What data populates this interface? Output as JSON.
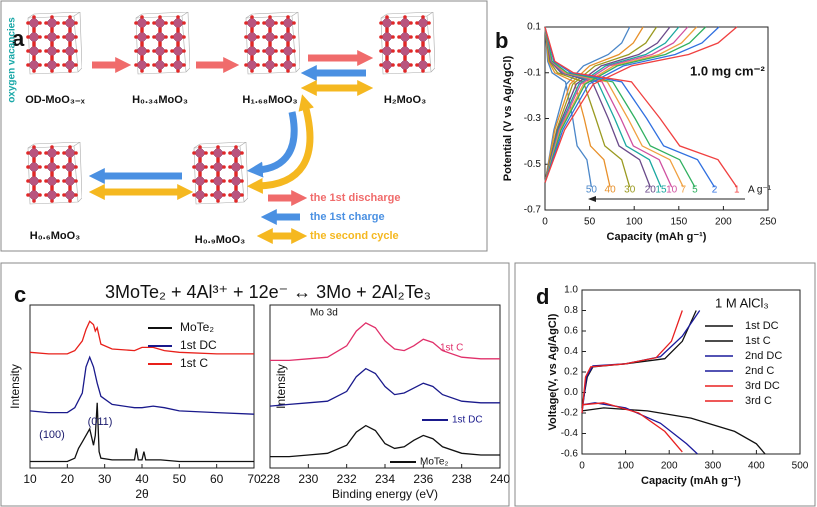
{
  "panel_a": {
    "label": "a",
    "vacancy_label": "oxygen vacancies",
    "nodes": [
      {
        "label": "OD-MoO₃₋ₓ"
      },
      {
        "label": "H₀.₃₄MoO₃"
      },
      {
        "label": "H₁.₆₈MoO₃"
      },
      {
        "label": "H₂MoO₃"
      },
      {
        "label": "H₀.₆MoO₃"
      },
      {
        "label": "H₀.₉MoO₃"
      }
    ],
    "legend": [
      {
        "name": "the 1st discharge",
        "color": "#f06b6b"
      },
      {
        "name": "the 1st charge",
        "color": "#4a90e2"
      },
      {
        "name": "the second cycle",
        "color": "#f5b820"
      }
    ]
  },
  "panel_c": {
    "label": "c",
    "equation": "3MoTe₂ + 4Al³⁺ + 12e⁻ ↔ 3Mo + 2Al₂Te₃"
  },
  "chart_data": [
    {
      "type": "line",
      "panel_label": "b",
      "annotation": "1.0 mg cm⁻²",
      "rate_unit": "A g⁻¹",
      "x_label": "Capacity (mAh g⁻¹)",
      "y_label": "Potential (V vs Ag/AgCl)",
      "xlim": [
        0,
        250
      ],
      "xticks": [
        0,
        50,
        100,
        150,
        200,
        250
      ],
      "ylim": [
        -0.7,
        0.1
      ],
      "yticks": [
        0.1,
        -0.1,
        -0.3,
        -0.5,
        -0.7
      ],
      "series": [
        {
          "name": "50",
          "color": "#4a86c8",
          "x": [
            0,
            3,
            8,
            23,
            31,
            36,
            47,
            52
          ],
          "values": [
            0.1,
            -0.05,
            -0.1,
            -0.14,
            -0.3,
            -0.42,
            -0.48,
            -0.6
          ],
          "charge_x": [
            0,
            10,
            24,
            43,
            71,
            86,
            95
          ],
          "charge_values": [
            -0.58,
            -0.35,
            -0.15,
            -0.07,
            -0.02,
            0.03,
            0.1
          ]
        },
        {
          "name": "40",
          "color": "#e8902a",
          "x": [
            0,
            4,
            11,
            33,
            44,
            51,
            66,
            73
          ],
          "values": [
            0.1,
            -0.05,
            -0.1,
            -0.14,
            -0.3,
            -0.42,
            -0.48,
            -0.6
          ],
          "charge_x": [
            0,
            11,
            28,
            50,
            83,
            99,
            110
          ],
          "charge_values": [
            -0.58,
            -0.35,
            -0.15,
            -0.07,
            -0.02,
            0.03,
            0.1
          ]
        },
        {
          "name": "30",
          "color": "#9a9a20",
          "x": [
            0,
            5,
            14,
            43,
            57,
            67,
            86,
            95
          ],
          "values": [
            0.1,
            -0.05,
            -0.1,
            -0.14,
            -0.3,
            -0.42,
            -0.48,
            -0.6
          ],
          "charge_x": [
            0,
            13,
            31,
            56,
            94,
            113,
            125
          ],
          "charge_values": [
            -0.58,
            -0.35,
            -0.15,
            -0.07,
            -0.02,
            0.03,
            0.1
          ]
        },
        {
          "name": "20",
          "color": "#6a4a8a",
          "x": [
            0,
            6,
            18,
            53,
            71,
            83,
            106,
            118
          ],
          "values": [
            0.1,
            -0.05,
            -0.1,
            -0.14,
            -0.3,
            -0.42,
            -0.48,
            -0.6
          ],
          "charge_x": [
            0,
            14,
            35,
            63,
            105,
            126,
            140
          ],
          "charge_values": [
            -0.58,
            -0.35,
            -0.15,
            -0.07,
            -0.02,
            0.03,
            0.1
          ]
        },
        {
          "name": "15",
          "color": "#1aa8a0",
          "x": [
            0,
            7,
            20,
            59,
            78,
            91,
            117,
            130
          ],
          "values": [
            0.1,
            -0.05,
            -0.1,
            -0.14,
            -0.3,
            -0.42,
            -0.48,
            -0.6
          ],
          "charge_x": [
            0,
            15,
            38,
            68,
            113,
            135,
            150
          ],
          "charge_values": [
            -0.58,
            -0.35,
            -0.15,
            -0.07,
            -0.02,
            0.03,
            0.1
          ]
        },
        {
          "name": "10",
          "color": "#d050a0",
          "x": [
            0,
            7,
            21,
            64,
            85,
            99,
            128,
            142
          ],
          "values": [
            0.1,
            -0.05,
            -0.1,
            -0.14,
            -0.3,
            -0.42,
            -0.48,
            -0.6
          ],
          "charge_x": [
            0,
            16,
            40,
            72,
            120,
            144,
            160
          ],
          "charge_values": [
            -0.58,
            -0.35,
            -0.15,
            -0.07,
            -0.02,
            0.03,
            0.1
          ]
        },
        {
          "name": "7",
          "color": "#f0a040",
          "x": [
            0,
            8,
            23,
            70,
            93,
            109,
            140,
            155
          ],
          "values": [
            0.1,
            -0.05,
            -0.1,
            -0.14,
            -0.3,
            -0.42,
            -0.48,
            -0.6
          ],
          "charge_x": [
            0,
            17,
            43,
            77,
            128,
            153,
            170
          ],
          "charge_values": [
            -0.58,
            -0.35,
            -0.15,
            -0.07,
            -0.02,
            0.03,
            0.1
          ]
        },
        {
          "name": "5",
          "color": "#30b060",
          "x": [
            0,
            8,
            25,
            76,
            101,
            118,
            151,
            168
          ],
          "values": [
            0.1,
            -0.05,
            -0.1,
            -0.14,
            -0.3,
            -0.42,
            -0.48,
            -0.6
          ],
          "charge_x": [
            0,
            18,
            45,
            81,
            135,
            162,
            180
          ],
          "charge_values": [
            -0.58,
            -0.35,
            -0.15,
            -0.07,
            -0.02,
            0.03,
            0.1
          ]
        },
        {
          "name": "2",
          "color": "#3070e0",
          "x": [
            0,
            10,
            29,
            86,
            114,
            133,
            171,
            190
          ],
          "values": [
            0.1,
            -0.05,
            -0.1,
            -0.14,
            -0.3,
            -0.42,
            -0.48,
            -0.6
          ],
          "charge_x": [
            0,
            20,
            49,
            88,
            146,
            176,
            195
          ],
          "charge_values": [
            -0.58,
            -0.35,
            -0.15,
            -0.07,
            -0.02,
            0.03,
            0.1
          ]
        },
        {
          "name": "1",
          "color": "#f04040",
          "x": [
            0,
            11,
            32,
            97,
            129,
            151,
            194,
            215
          ],
          "values": [
            0.1,
            -0.05,
            -0.1,
            -0.14,
            -0.3,
            -0.42,
            -0.48,
            -0.6
          ],
          "charge_x": [
            0,
            22,
            54,
            97,
            161,
            194,
            215
          ],
          "charge_values": [
            -0.58,
            -0.35,
            -0.15,
            -0.07,
            -0.02,
            0.03,
            0.1
          ]
        }
      ]
    },
    {
      "type": "line",
      "x_label": "2θ",
      "y_label": "Intensity",
      "annotations": [
        "(100)",
        "(011)"
      ],
      "xlim": [
        10,
        70
      ],
      "xticks": [
        10,
        20,
        30,
        40,
        50,
        60,
        70
      ],
      "ylim": [
        0,
        100
      ],
      "series": [
        {
          "name": "MoTe₂",
          "color": "#111111",
          "x": [
            10,
            15,
            20,
            22,
            23,
            24,
            25,
            26,
            27,
            27.5,
            28,
            28.5,
            29,
            32,
            38,
            38.5,
            39,
            40,
            40.5,
            41,
            45,
            50,
            60,
            70
          ],
          "values": [
            4,
            4,
            4,
            6,
            12,
            16,
            20,
            24,
            14,
            20,
            40,
            10,
            6,
            5,
            5,
            12,
            5,
            5,
            10,
            5,
            5,
            4,
            4,
            4
          ]
        },
        {
          "name": "1st DC",
          "color": "#1a1a8c",
          "x": [
            10,
            15,
            20,
            22,
            24,
            25,
            26,
            27,
            28,
            29,
            32,
            38,
            40,
            43,
            46,
            50,
            60,
            70
          ],
          "values": [
            35,
            34,
            34,
            37,
            46,
            62,
            68,
            62,
            52,
            44,
            39,
            37,
            37,
            38,
            37,
            35,
            34,
            33
          ]
        },
        {
          "name": "1st C",
          "color": "#e8201a",
          "x": [
            10,
            15,
            20,
            22,
            24,
            25,
            26,
            27,
            27.5,
            28,
            29,
            32,
            38,
            40,
            43,
            46,
            50,
            60,
            70
          ],
          "values": [
            71,
            70,
            70,
            72,
            78,
            85,
            90,
            88,
            84,
            86,
            76,
            73,
            72,
            74,
            74,
            72,
            71,
            70,
            70
          ]
        }
      ]
    },
    {
      "type": "line",
      "x_label": "Binding energy (eV)",
      "y_label": "Intensity",
      "annotation": "Mo 3d",
      "xlim": [
        228,
        240
      ],
      "xticks": [
        228,
        230,
        232,
        234,
        236,
        238,
        240
      ],
      "ylim": [
        0,
        100
      ],
      "series": [
        {
          "name": "1st C",
          "color": "#e0306a",
          "x": [
            228,
            229,
            230,
            231,
            232,
            232.5,
            233,
            233.5,
            234,
            234.5,
            235,
            235.5,
            236,
            236.5,
            237,
            238,
            239,
            240
          ],
          "values": [
            66,
            66,
            67,
            68,
            75,
            84,
            89,
            86,
            78,
            73,
            72,
            75,
            79,
            77,
            72,
            68,
            67,
            67
          ]
        },
        {
          "name": "1st DC",
          "color": "#1a1a8c",
          "x": [
            228,
            229,
            230,
            231,
            232,
            232.5,
            233,
            233.5,
            234,
            234.5,
            235,
            235.5,
            236,
            236.5,
            237,
            238,
            239,
            240
          ],
          "values": [
            38,
            39,
            40,
            41,
            47,
            56,
            61,
            58,
            50,
            45,
            46,
            49,
            52,
            50,
            45,
            41,
            40,
            40
          ]
        },
        {
          "name": "MoTe₂",
          "color": "#111111",
          "x": [
            228,
            229,
            230,
            231,
            232,
            232.5,
            233,
            233.5,
            234,
            234.5,
            235,
            235.5,
            236,
            236.5,
            237,
            238,
            239,
            240
          ],
          "values": [
            7,
            7,
            8,
            9,
            14,
            22,
            26,
            23,
            15,
            12,
            13,
            17,
            20,
            18,
            13,
            9,
            8,
            8
          ]
        }
      ]
    },
    {
      "type": "line",
      "panel_label": "d",
      "annotation": "1 M AlCl₃",
      "x_label": "Capacity (mAh g⁻¹)",
      "y_label": "Voltage(V, vs Ag/AgCl)",
      "xlim": [
        0,
        500
      ],
      "xticks": [
        0,
        100,
        200,
        300,
        400,
        500
      ],
      "ylim": [
        -0.6,
        1.0
      ],
      "yticks": [
        -0.6,
        -0.4,
        -0.2,
        {
          "value": 0,
          "label": "0.0"
        },
        0.2,
        0.4,
        0.6,
        0.8,
        {
          "value": 1,
          "label": "1.0"
        }
      ],
      "series": [
        {
          "name": "1st DC",
          "color": "#111111",
          "x": [
            0,
            50,
            150,
            250,
            350,
            400,
            420
          ],
          "values": [
            -0.18,
            -0.15,
            -0.18,
            -0.25,
            -0.38,
            -0.5,
            -0.6
          ]
        },
        {
          "name": "1st C",
          "color": "#111111",
          "x": [
            0,
            12,
            25,
            100,
            190,
            230,
            262
          ],
          "values": [
            -0.15,
            0.15,
            0.25,
            0.28,
            0.33,
            0.5,
            0.8
          ]
        },
        {
          "name": "2nd DC",
          "color": "#1a1a9c",
          "x": [
            0,
            30,
            100,
            180,
            240,
            265
          ],
          "values": [
            -0.12,
            -0.1,
            -0.15,
            -0.3,
            -0.5,
            -0.6
          ]
        },
        {
          "name": "2nd C",
          "color": "#1a1a9c",
          "x": [
            0,
            10,
            25,
            100,
            180,
            230,
            270
          ],
          "values": [
            -0.2,
            0.15,
            0.26,
            0.28,
            0.35,
            0.55,
            0.8
          ]
        },
        {
          "name": "3rd DC",
          "color": "#e82020",
          "x": [
            0,
            50,
            130,
            190,
            230
          ],
          "values": [
            -0.12,
            -0.1,
            -0.2,
            -0.38,
            -0.58
          ]
        },
        {
          "name": "3rd C",
          "color": "#e82020",
          "x": [
            0,
            8,
            20,
            100,
            170,
            205,
            230
          ],
          "values": [
            -0.2,
            0.15,
            0.25,
            0.28,
            0.34,
            0.5,
            0.8
          ]
        }
      ]
    }
  ]
}
